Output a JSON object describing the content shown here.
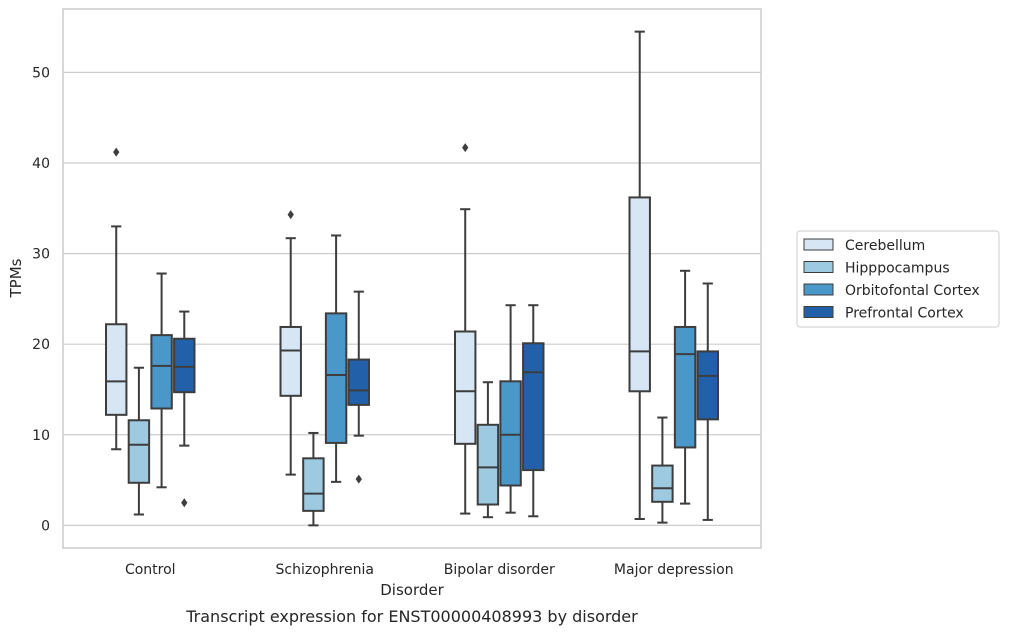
{
  "caption": "Transcript expression for ENST00000408993 by disorder",
  "chart_data": {
    "type": "box",
    "xlabel": "Disorder",
    "ylabel": "TPMs",
    "ylim": [
      -2.5,
      57
    ],
    "yticks": [
      0,
      10,
      20,
      30,
      40,
      50
    ],
    "grid": "y",
    "legend_placement": "right",
    "categories": [
      "Control",
      "Schizophrenia",
      "Bipolar disorder",
      "Major depression"
    ],
    "series": [
      {
        "name": "Cerebellum",
        "color": "#d6e6f4",
        "boxes": [
          {
            "whislo": 8.4,
            "q1": 12.2,
            "med": 15.9,
            "q3": 22.2,
            "whishi": 33.0,
            "fliers": [
              41.2
            ]
          },
          {
            "whislo": 5.6,
            "q1": 14.3,
            "med": 19.3,
            "q3": 21.9,
            "whishi": 31.7,
            "fliers": [
              34.3
            ]
          },
          {
            "whislo": 1.3,
            "q1": 9.0,
            "med": 14.8,
            "q3": 21.4,
            "whishi": 34.9,
            "fliers": [
              41.7
            ]
          },
          {
            "whislo": 0.7,
            "q1": 14.8,
            "med": 19.2,
            "q3": 36.2,
            "whishi": 54.5,
            "fliers": []
          }
        ]
      },
      {
        "name": "Hipppocampus",
        "color": "#9dcae1",
        "boxes": [
          {
            "whislo": 1.2,
            "q1": 4.7,
            "med": 8.9,
            "q3": 11.6,
            "whishi": 17.4,
            "fliers": []
          },
          {
            "whislo": 0.0,
            "q1": 1.6,
            "med": 3.5,
            "q3": 7.4,
            "whishi": 10.2,
            "fliers": []
          },
          {
            "whislo": 0.9,
            "q1": 2.3,
            "med": 6.4,
            "q3": 11.1,
            "whishi": 15.8,
            "fliers": []
          },
          {
            "whislo": 0.3,
            "q1": 2.6,
            "med": 4.1,
            "q3": 6.6,
            "whishi": 11.9,
            "fliers": []
          }
        ]
      },
      {
        "name": "Orbitofontal Cortex",
        "color": "#4a98c9",
        "boxes": [
          {
            "whislo": 4.2,
            "q1": 12.9,
            "med": 17.6,
            "q3": 21.0,
            "whishi": 27.8,
            "fliers": []
          },
          {
            "whislo": 4.8,
            "q1": 9.1,
            "med": 16.6,
            "q3": 23.4,
            "whishi": 32.0,
            "fliers": []
          },
          {
            "whislo": 1.4,
            "q1": 4.4,
            "med": 10.0,
            "q3": 15.9,
            "whishi": 24.3,
            "fliers": []
          },
          {
            "whislo": 2.4,
            "q1": 8.6,
            "med": 18.9,
            "q3": 21.9,
            "whishi": 28.1,
            "fliers": []
          }
        ]
      },
      {
        "name": "Prefrontal Cortex",
        "color": "#2260a9",
        "boxes": [
          {
            "whislo": 8.8,
            "q1": 14.7,
            "med": 17.5,
            "q3": 20.6,
            "whishi": 23.6,
            "fliers": [
              2.5
            ]
          },
          {
            "whislo": 9.9,
            "q1": 13.3,
            "med": 14.9,
            "q3": 18.3,
            "whishi": 25.8,
            "fliers": [
              5.1
            ]
          },
          {
            "whislo": 1.0,
            "q1": 6.1,
            "med": 16.9,
            "q3": 20.1,
            "whishi": 24.3,
            "fliers": []
          },
          {
            "whislo": 0.6,
            "q1": 11.7,
            "med": 16.5,
            "q3": 19.2,
            "whishi": 26.7,
            "fliers": []
          }
        ]
      }
    ]
  }
}
